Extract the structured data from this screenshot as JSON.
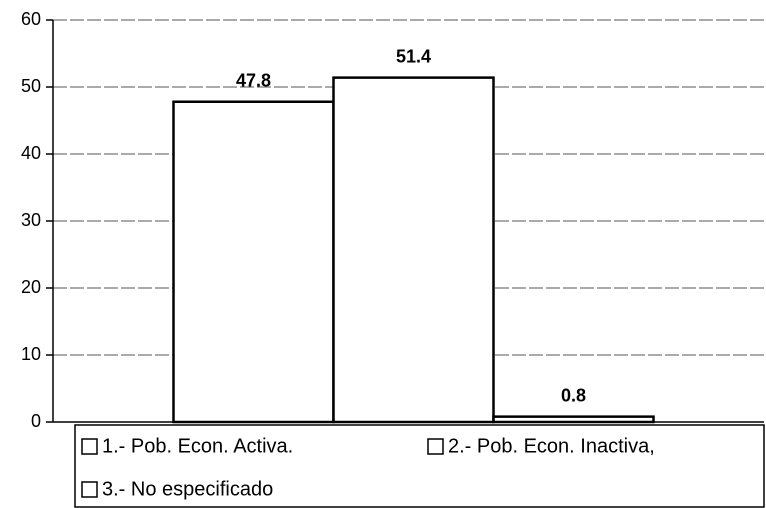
{
  "chart_data": {
    "type": "bar",
    "categories": [
      null
    ],
    "series": [
      {
        "name": "1.- Pob. Econ. Activa.",
        "color": "#ffffff",
        "values": [
          47.8
        ]
      },
      {
        "name": "2.- Pob. Econ. Inactiva,",
        "color": "#ffffff",
        "values": [
          51.4
        ]
      },
      {
        "name": "3.- No especificado",
        "color": "#ffffff",
        "values": [
          0.8
        ]
      }
    ],
    "ylim": [
      0,
      60
    ],
    "yticks": [
      0,
      10,
      20,
      30,
      40,
      50,
      60
    ],
    "grid": true,
    "legend": "bottom"
  }
}
